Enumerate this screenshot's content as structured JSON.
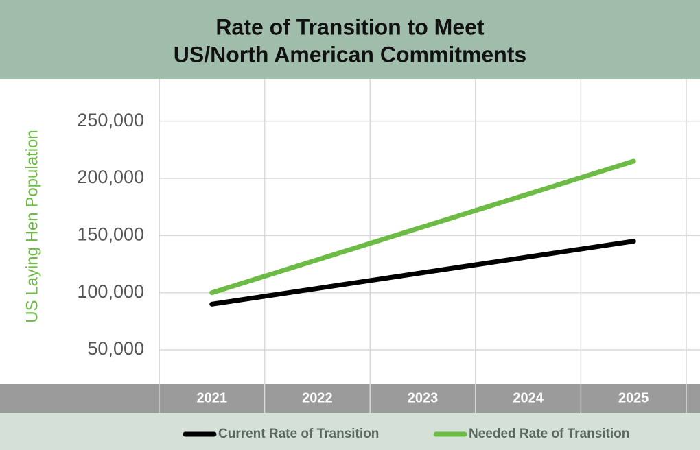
{
  "chart_data": {
    "type": "line",
    "title": [
      "Rate of Transition to Meet",
      "US/North American Commitments"
    ],
    "y_label": "US Laying Hen Population",
    "categories": [
      "2021",
      "2022",
      "2023",
      "2024",
      "2025"
    ],
    "series": [
      {
        "name": "Current Rate of Transition",
        "color": "#000000",
        "values": [
          90000,
          103750,
          117500,
          131250,
          145000
        ]
      },
      {
        "name": "Needed Rate of Transition",
        "color": "#6cbb45",
        "values": [
          100000,
          128750,
          157500,
          186250,
          215000
        ]
      }
    ],
    "ylim": [
      20000,
      287000
    ],
    "yticks": [
      {
        "value": 50000,
        "label": "50,000"
      },
      {
        "value": 100000,
        "label": "100,000"
      },
      {
        "value": 150000,
        "label": "150,000"
      },
      {
        "value": 200000,
        "label": "200,000"
      },
      {
        "value": 250000,
        "label": "250,000"
      }
    ],
    "grid": true,
    "legend": "bottom"
  }
}
